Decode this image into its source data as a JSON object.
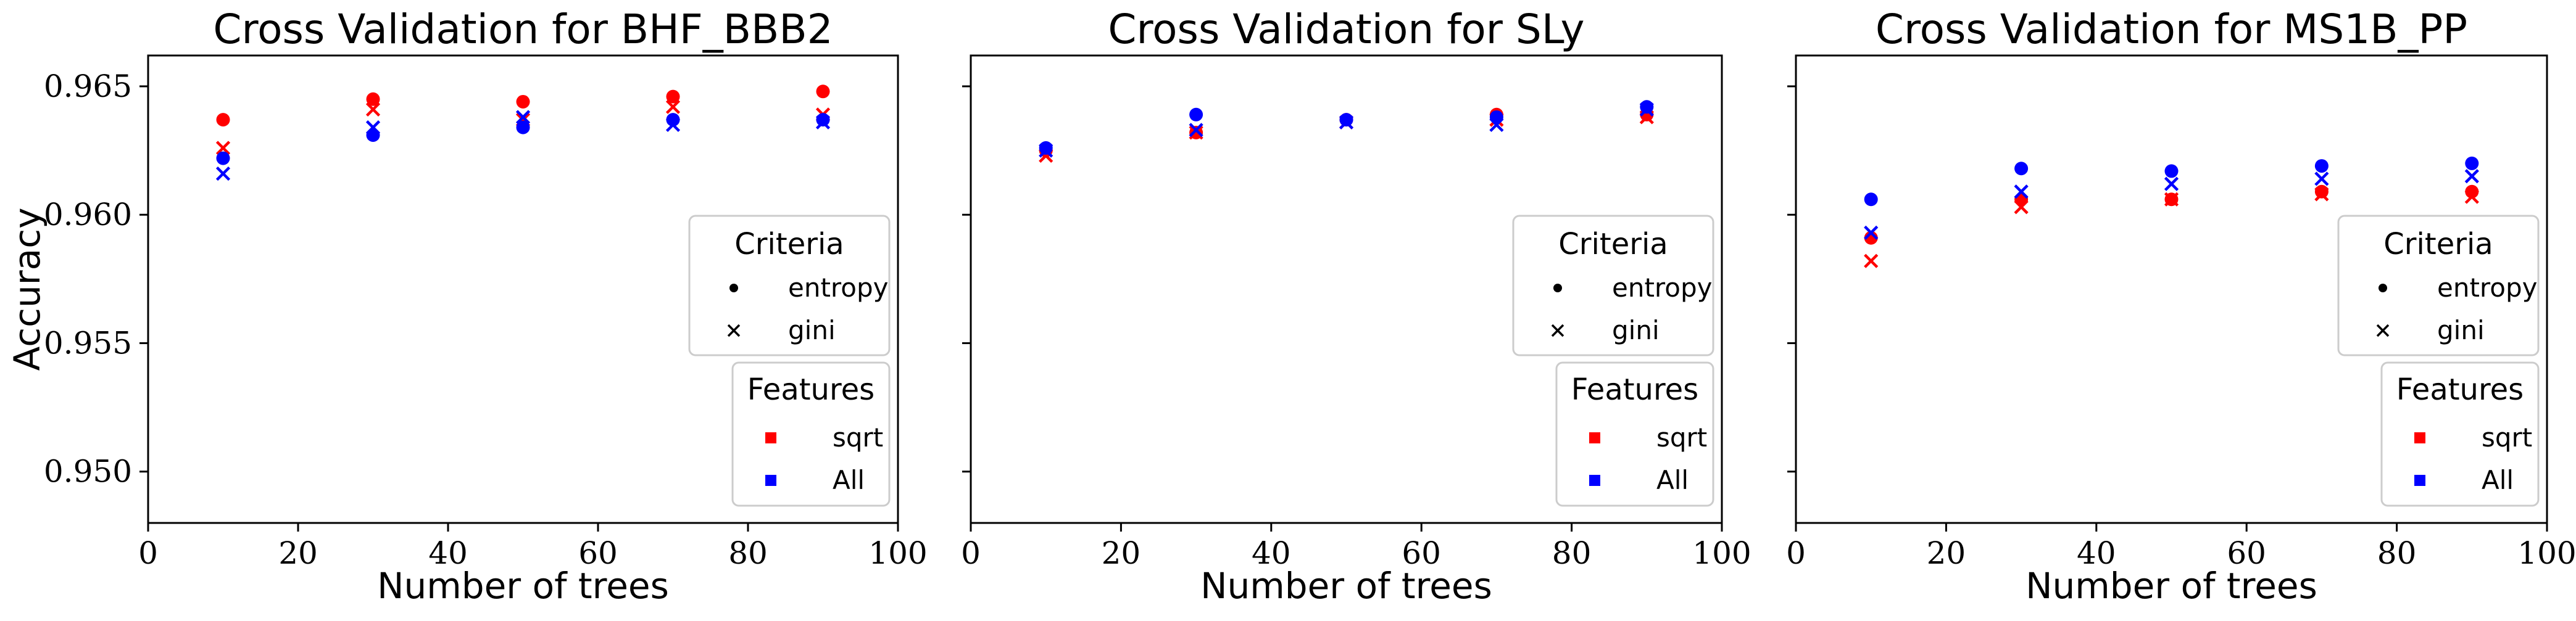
{
  "colors": {
    "sqrt": "#ff0000",
    "All": "#0000ff"
  },
  "legends": {
    "criteria": {
      "title": "Criteria",
      "items": [
        {
          "label": "entropy",
          "marker": "circle"
        },
        {
          "label": "gini",
          "marker": "x"
        }
      ]
    },
    "features": {
      "title": "Features",
      "items": [
        {
          "label": "sqrt",
          "color": "#ff0000"
        },
        {
          "label": "All",
          "color": "#0000ff"
        }
      ]
    },
    "placement": "right"
  },
  "chart_data": [
    {
      "type": "scatter",
      "title": "Cross Validation for BHF_BBB2",
      "xlabel": "Number of trees",
      "ylabel": "Accuracy",
      "xlim": [
        0,
        100
      ],
      "ylim": [
        0.948,
        0.9662
      ],
      "xticks": [
        "0",
        "20",
        "40",
        "60",
        "80",
        "100"
      ],
      "yticks": [
        "0.950",
        "0.955",
        "0.960",
        "0.965"
      ],
      "x": [
        10,
        30,
        50,
        70,
        90
      ],
      "series": [
        {
          "name": "entropy / sqrt",
          "marker": "circle",
          "color": "#ff0000",
          "values": [
            0.9637,
            0.9645,
            0.9644,
            0.9646,
            0.9648
          ]
        },
        {
          "name": "gini / sqrt",
          "marker": "x",
          "color": "#ff0000",
          "values": [
            0.9626,
            0.9641,
            0.9637,
            0.9642,
            0.9639
          ]
        },
        {
          "name": "entropy / All",
          "marker": "circle",
          "color": "#0000ff",
          "values": [
            0.9622,
            0.9631,
            0.9634,
            0.9637,
            0.9637
          ]
        },
        {
          "name": "gini / All",
          "marker": "x",
          "color": "#0000ff",
          "values": [
            0.9616,
            0.9634,
            0.9638,
            0.9635,
            0.9636
          ]
        }
      ]
    },
    {
      "type": "scatter",
      "title": "Cross Validation for SLy",
      "xlabel": "Number of trees",
      "ylabel": "",
      "xlim": [
        0,
        100
      ],
      "ylim": [
        0.948,
        0.9662
      ],
      "xticks": [
        "0",
        "20",
        "40",
        "60",
        "80",
        "100"
      ],
      "yticks": [],
      "x": [
        10,
        30,
        50,
        70,
        90
      ],
      "series": [
        {
          "name": "entropy / sqrt",
          "marker": "circle",
          "color": "#ff0000",
          "values": [
            0.9625,
            0.9632,
            0.9637,
            0.9639,
            0.9639
          ]
        },
        {
          "name": "gini / sqrt",
          "marker": "x",
          "color": "#ff0000",
          "values": [
            0.9623,
            0.9632,
            0.9636,
            0.9637,
            0.9638
          ]
        },
        {
          "name": "entropy / All",
          "marker": "circle",
          "color": "#0000ff",
          "values": [
            0.9626,
            0.9639,
            0.9637,
            0.9638,
            0.9642
          ]
        },
        {
          "name": "gini / All",
          "marker": "x",
          "color": "#0000ff",
          "values": [
            0.9625,
            0.9633,
            0.9636,
            0.9635,
            0.9641
          ]
        }
      ]
    },
    {
      "type": "scatter",
      "title": "Cross Validation for MS1B_PP",
      "xlabel": "Number of trees",
      "ylabel": "",
      "xlim": [
        0,
        100
      ],
      "ylim": [
        0.948,
        0.9662
      ],
      "xticks": [
        "0",
        "20",
        "40",
        "60",
        "80",
        "100"
      ],
      "yticks": [],
      "x": [
        10,
        30,
        50,
        70,
        90
      ],
      "series": [
        {
          "name": "entropy / sqrt",
          "marker": "circle",
          "color": "#ff0000",
          "values": [
            0.9591,
            0.9606,
            0.9606,
            0.9609,
            0.9609
          ]
        },
        {
          "name": "gini / sqrt",
          "marker": "x",
          "color": "#ff0000",
          "values": [
            0.9582,
            0.9603,
            0.9606,
            0.9608,
            0.9607
          ]
        },
        {
          "name": "entropy / All",
          "marker": "circle",
          "color": "#0000ff",
          "values": [
            0.9606,
            0.9618,
            0.9617,
            0.9619,
            0.962
          ]
        },
        {
          "name": "gini / All",
          "marker": "x",
          "color": "#0000ff",
          "values": [
            0.9593,
            0.9609,
            0.9612,
            0.9614,
            0.9615
          ]
        }
      ]
    }
  ]
}
